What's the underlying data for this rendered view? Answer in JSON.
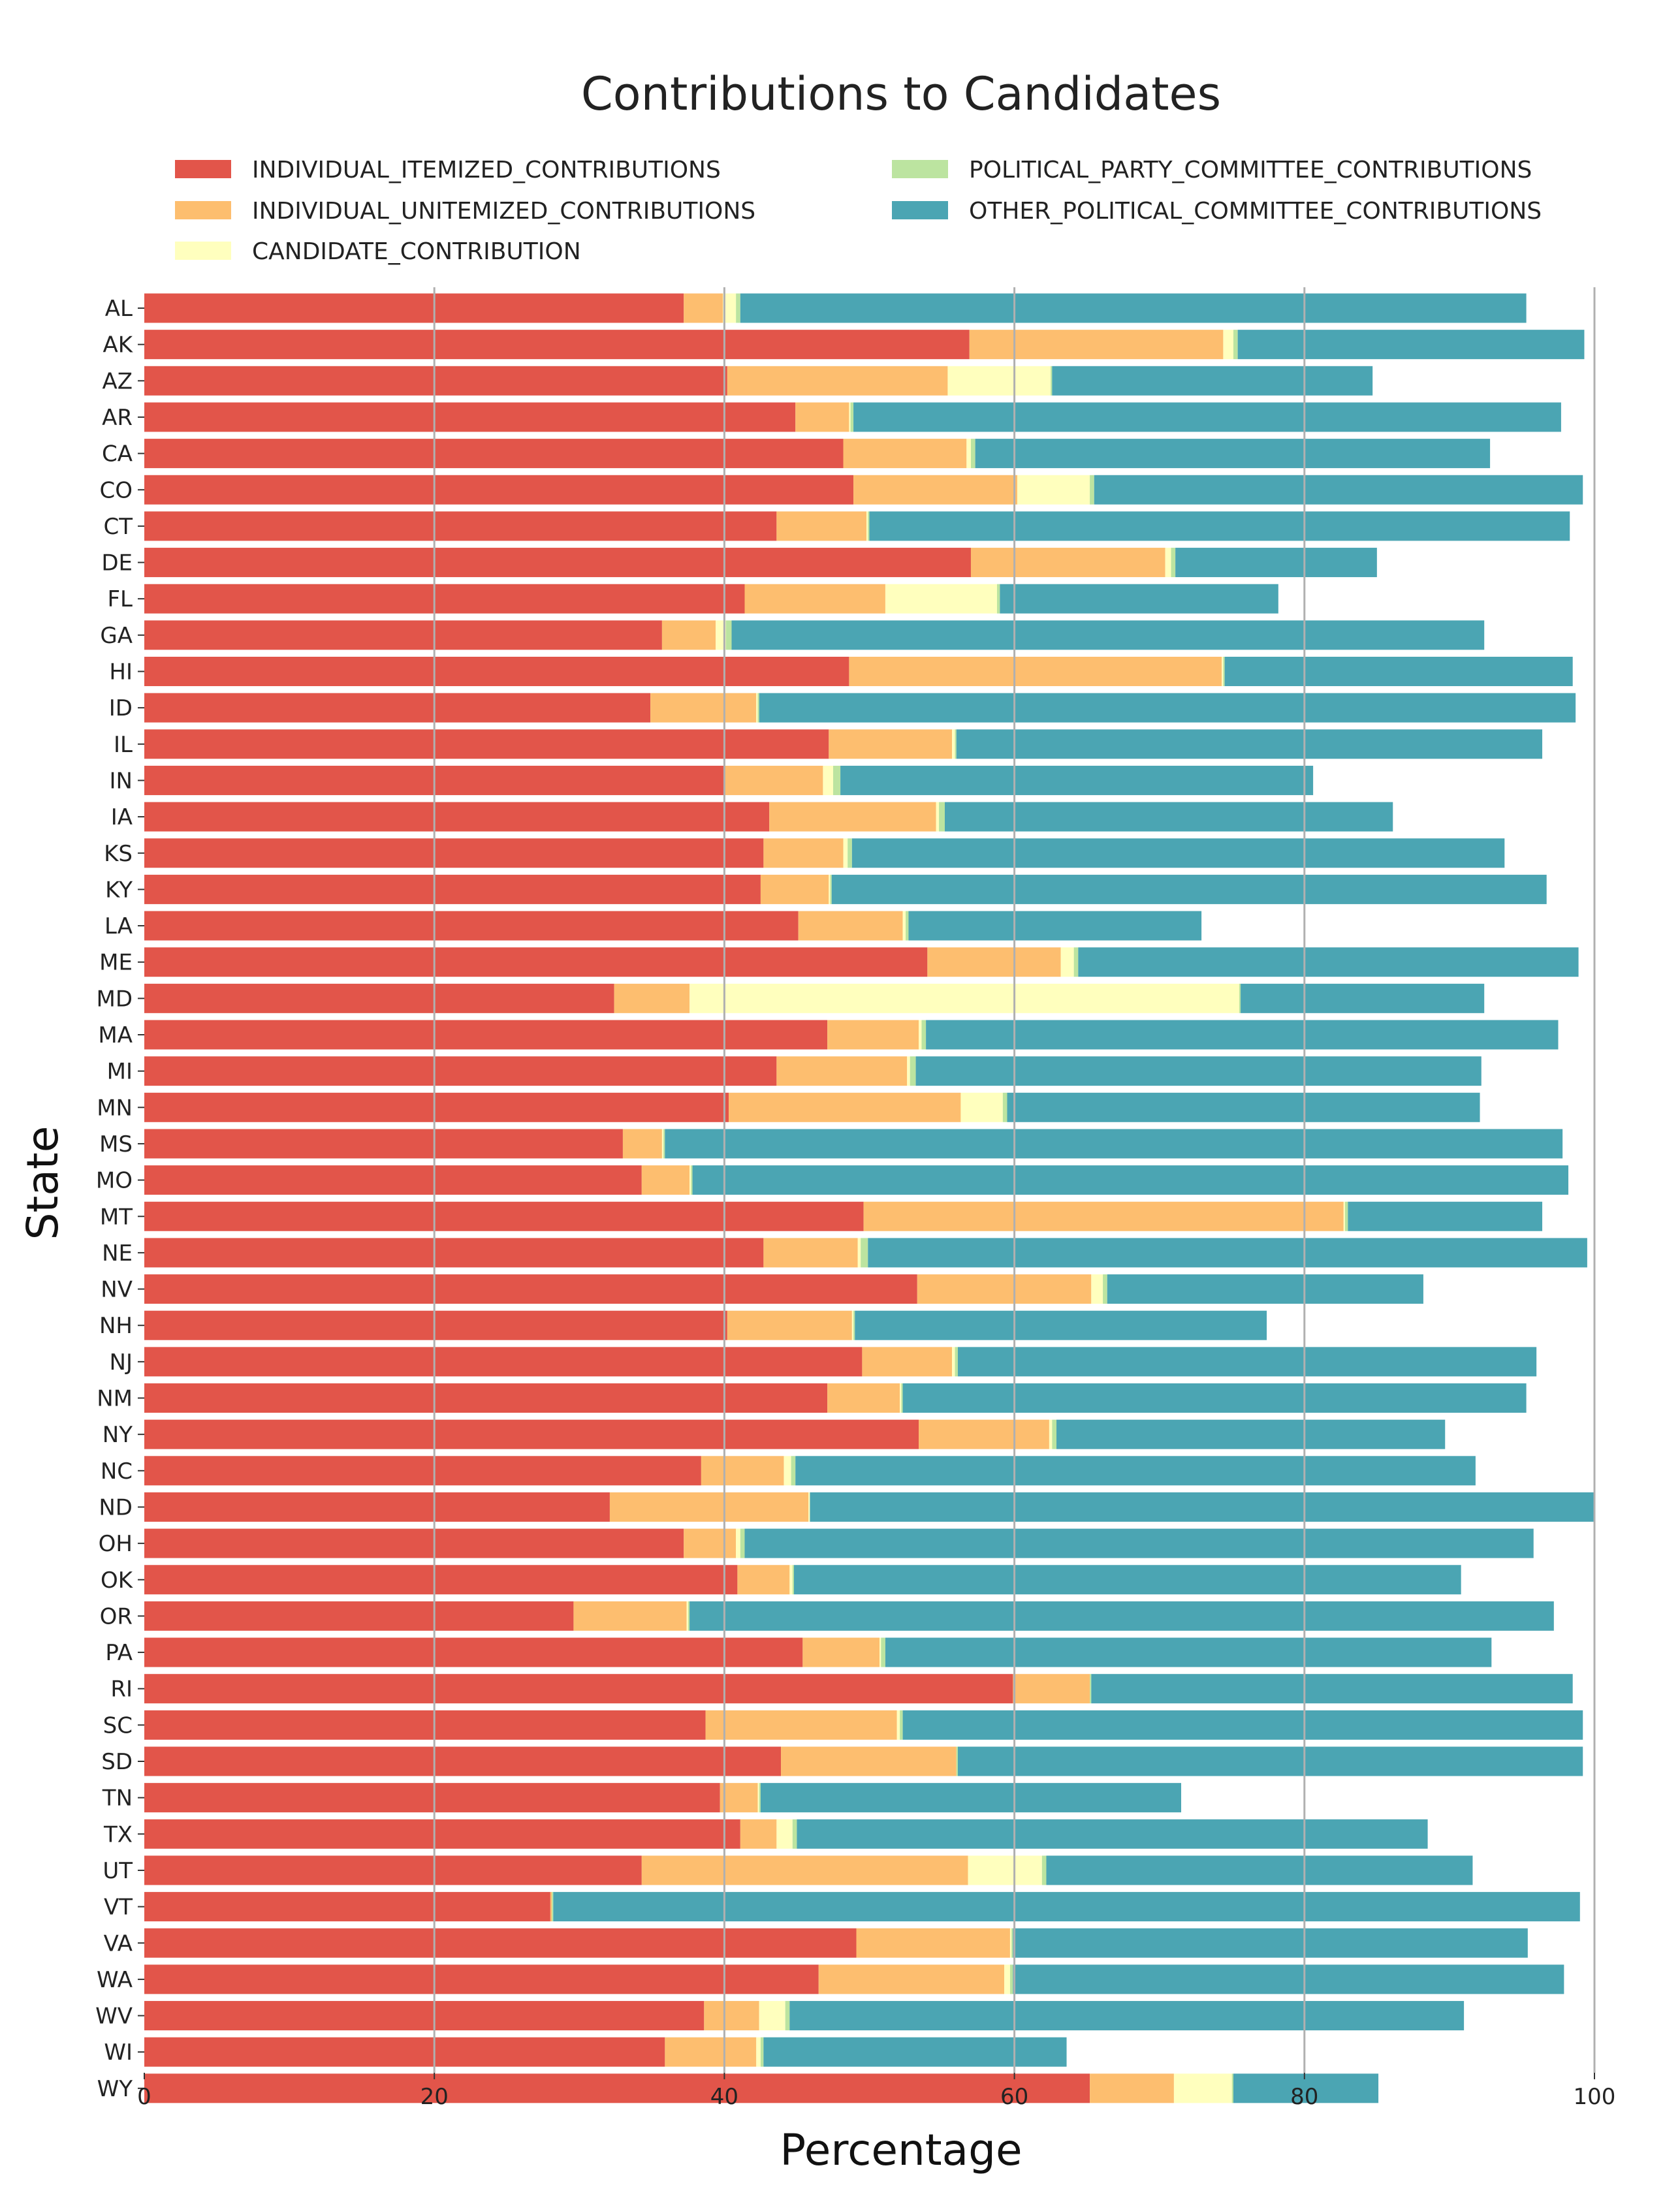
{
  "chart_data": {
    "type": "bar",
    "orientation": "horizontal",
    "stacked": true,
    "title": "Contributions to Candidates",
    "xlabel": "Percentage",
    "ylabel": "State",
    "xlim": [
      0,
      100
    ],
    "xticks": [
      0,
      20,
      40,
      60,
      80,
      100
    ],
    "grid": "vertical",
    "legend_placement": "top",
    "categories": [
      "AL",
      "AK",
      "AZ",
      "AR",
      "CA",
      "CO",
      "CT",
      "DE",
      "FL",
      "GA",
      "HI",
      "ID",
      "IL",
      "IN",
      "IA",
      "KS",
      "KY",
      "LA",
      "ME",
      "MD",
      "MA",
      "MI",
      "MN",
      "MS",
      "MO",
      "MT",
      "NE",
      "NV",
      "NH",
      "NJ",
      "NM",
      "NY",
      "NC",
      "ND",
      "OH",
      "OK",
      "OR",
      "PA",
      "RI",
      "SC",
      "SD",
      "TN",
      "TX",
      "UT",
      "VT",
      "VA",
      "WA",
      "WV",
      "WI",
      "WY"
    ],
    "series": [
      {
        "name": "INDIVIDUAL_ITEMIZED_CONTRIBUTIONS",
        "color": "#e2554a",
        "values": [
          37.2,
          56.9,
          40.2,
          44.9,
          48.2,
          48.9,
          43.6,
          57.0,
          41.4,
          35.7,
          48.6,
          34.9,
          47.2,
          40.0,
          43.1,
          42.7,
          42.5,
          45.1,
          54.0,
          32.4,
          47.1,
          43.6,
          40.3,
          33.0,
          34.3,
          49.6,
          42.7,
          53.3,
          40.2,
          49.5,
          47.1,
          53.4,
          38.4,
          32.1,
          37.2,
          40.9,
          29.6,
          45.4,
          59.9,
          38.7,
          43.9,
          39.7,
          41.1,
          34.3,
          28.0,
          49.1,
          46.5,
          38.6,
          35.9,
          65.2
        ]
      },
      {
        "name": "INDIVIDUAL_UNITEMIZED_CONTRIBUTIONS",
        "color": "#fdbe6f",
        "values": [
          2.7,
          17.5,
          15.2,
          3.7,
          8.5,
          11.3,
          6.2,
          13.4,
          9.7,
          3.7,
          25.7,
          7.3,
          8.5,
          6.8,
          11.5,
          5.5,
          4.7,
          7.2,
          9.2,
          5.2,
          6.3,
          9.0,
          16.0,
          2.7,
          3.3,
          33.1,
          6.5,
          12.0,
          8.6,
          6.2,
          5.0,
          9.0,
          5.7,
          13.7,
          3.6,
          3.6,
          7.8,
          5.3,
          5.3,
          13.2,
          12.1,
          2.6,
          2.5,
          22.5,
          0.1,
          10.6,
          12.8,
          3.8,
          6.3,
          5.8
        ]
      },
      {
        "name": "CANDIDATE_CONTRIBUTION",
        "color": "#ffffbe",
        "values": [
          0.9,
          0.7,
          7.1,
          0.1,
          0.3,
          5.0,
          0.1,
          0.4,
          7.7,
          0.7,
          0.1,
          0.1,
          0.2,
          0.7,
          0.2,
          0.3,
          0.1,
          0.2,
          0.9,
          37.9,
          0.2,
          0.2,
          2.9,
          0.1,
          0.1,
          0.1,
          0.2,
          0.8,
          0.1,
          0.2,
          0.1,
          0.2,
          0.5,
          0.1,
          0.3,
          0.2,
          0.1,
          0.1,
          0.0,
          0.2,
          0.0,
          0.1,
          1.1,
          5.1,
          0.0,
          0.1,
          0.4,
          1.8,
          0.3,
          4.0
        ]
      },
      {
        "name": "POLITICAL_PARTY_COMMITTEE_CONTRIBUTIONS",
        "color": "#bce4a0",
        "values": [
          0.3,
          0.3,
          0.1,
          0.2,
          0.3,
          0.3,
          0.1,
          0.3,
          0.2,
          0.4,
          0.1,
          0.1,
          0.1,
          0.5,
          0.4,
          0.3,
          0.1,
          0.2,
          0.3,
          0.1,
          0.3,
          0.4,
          0.3,
          0.1,
          0.1,
          0.2,
          0.5,
          0.3,
          0.1,
          0.2,
          0.1,
          0.3,
          0.3,
          0.0,
          0.3,
          0.1,
          0.1,
          0.3,
          0.1,
          0.2,
          0.1,
          0.1,
          0.3,
          0.3,
          0.1,
          0.1,
          0.2,
          0.3,
          0.2,
          0.1
        ]
      },
      {
        "name": "OTHER_POLITICAL_COMMITTEE_CONTRIBUTIONS",
        "color": "#4ba5b3",
        "values": [
          54.2,
          23.9,
          22.1,
          48.8,
          35.5,
          33.7,
          48.3,
          13.9,
          19.2,
          51.9,
          24.0,
          56.3,
          40.4,
          32.6,
          30.9,
          45.0,
          49.3,
          20.2,
          34.5,
          16.8,
          43.6,
          39.0,
          32.6,
          61.9,
          60.4,
          13.4,
          49.6,
          21.8,
          28.4,
          39.9,
          43.0,
          26.8,
          46.9,
          54.1,
          54.4,
          46.0,
          59.6,
          41.8,
          33.2,
          46.9,
          43.1,
          29.0,
          43.5,
          29.4,
          70.8,
          35.5,
          38.0,
          46.5,
          20.9,
          10.0
        ]
      }
    ]
  }
}
